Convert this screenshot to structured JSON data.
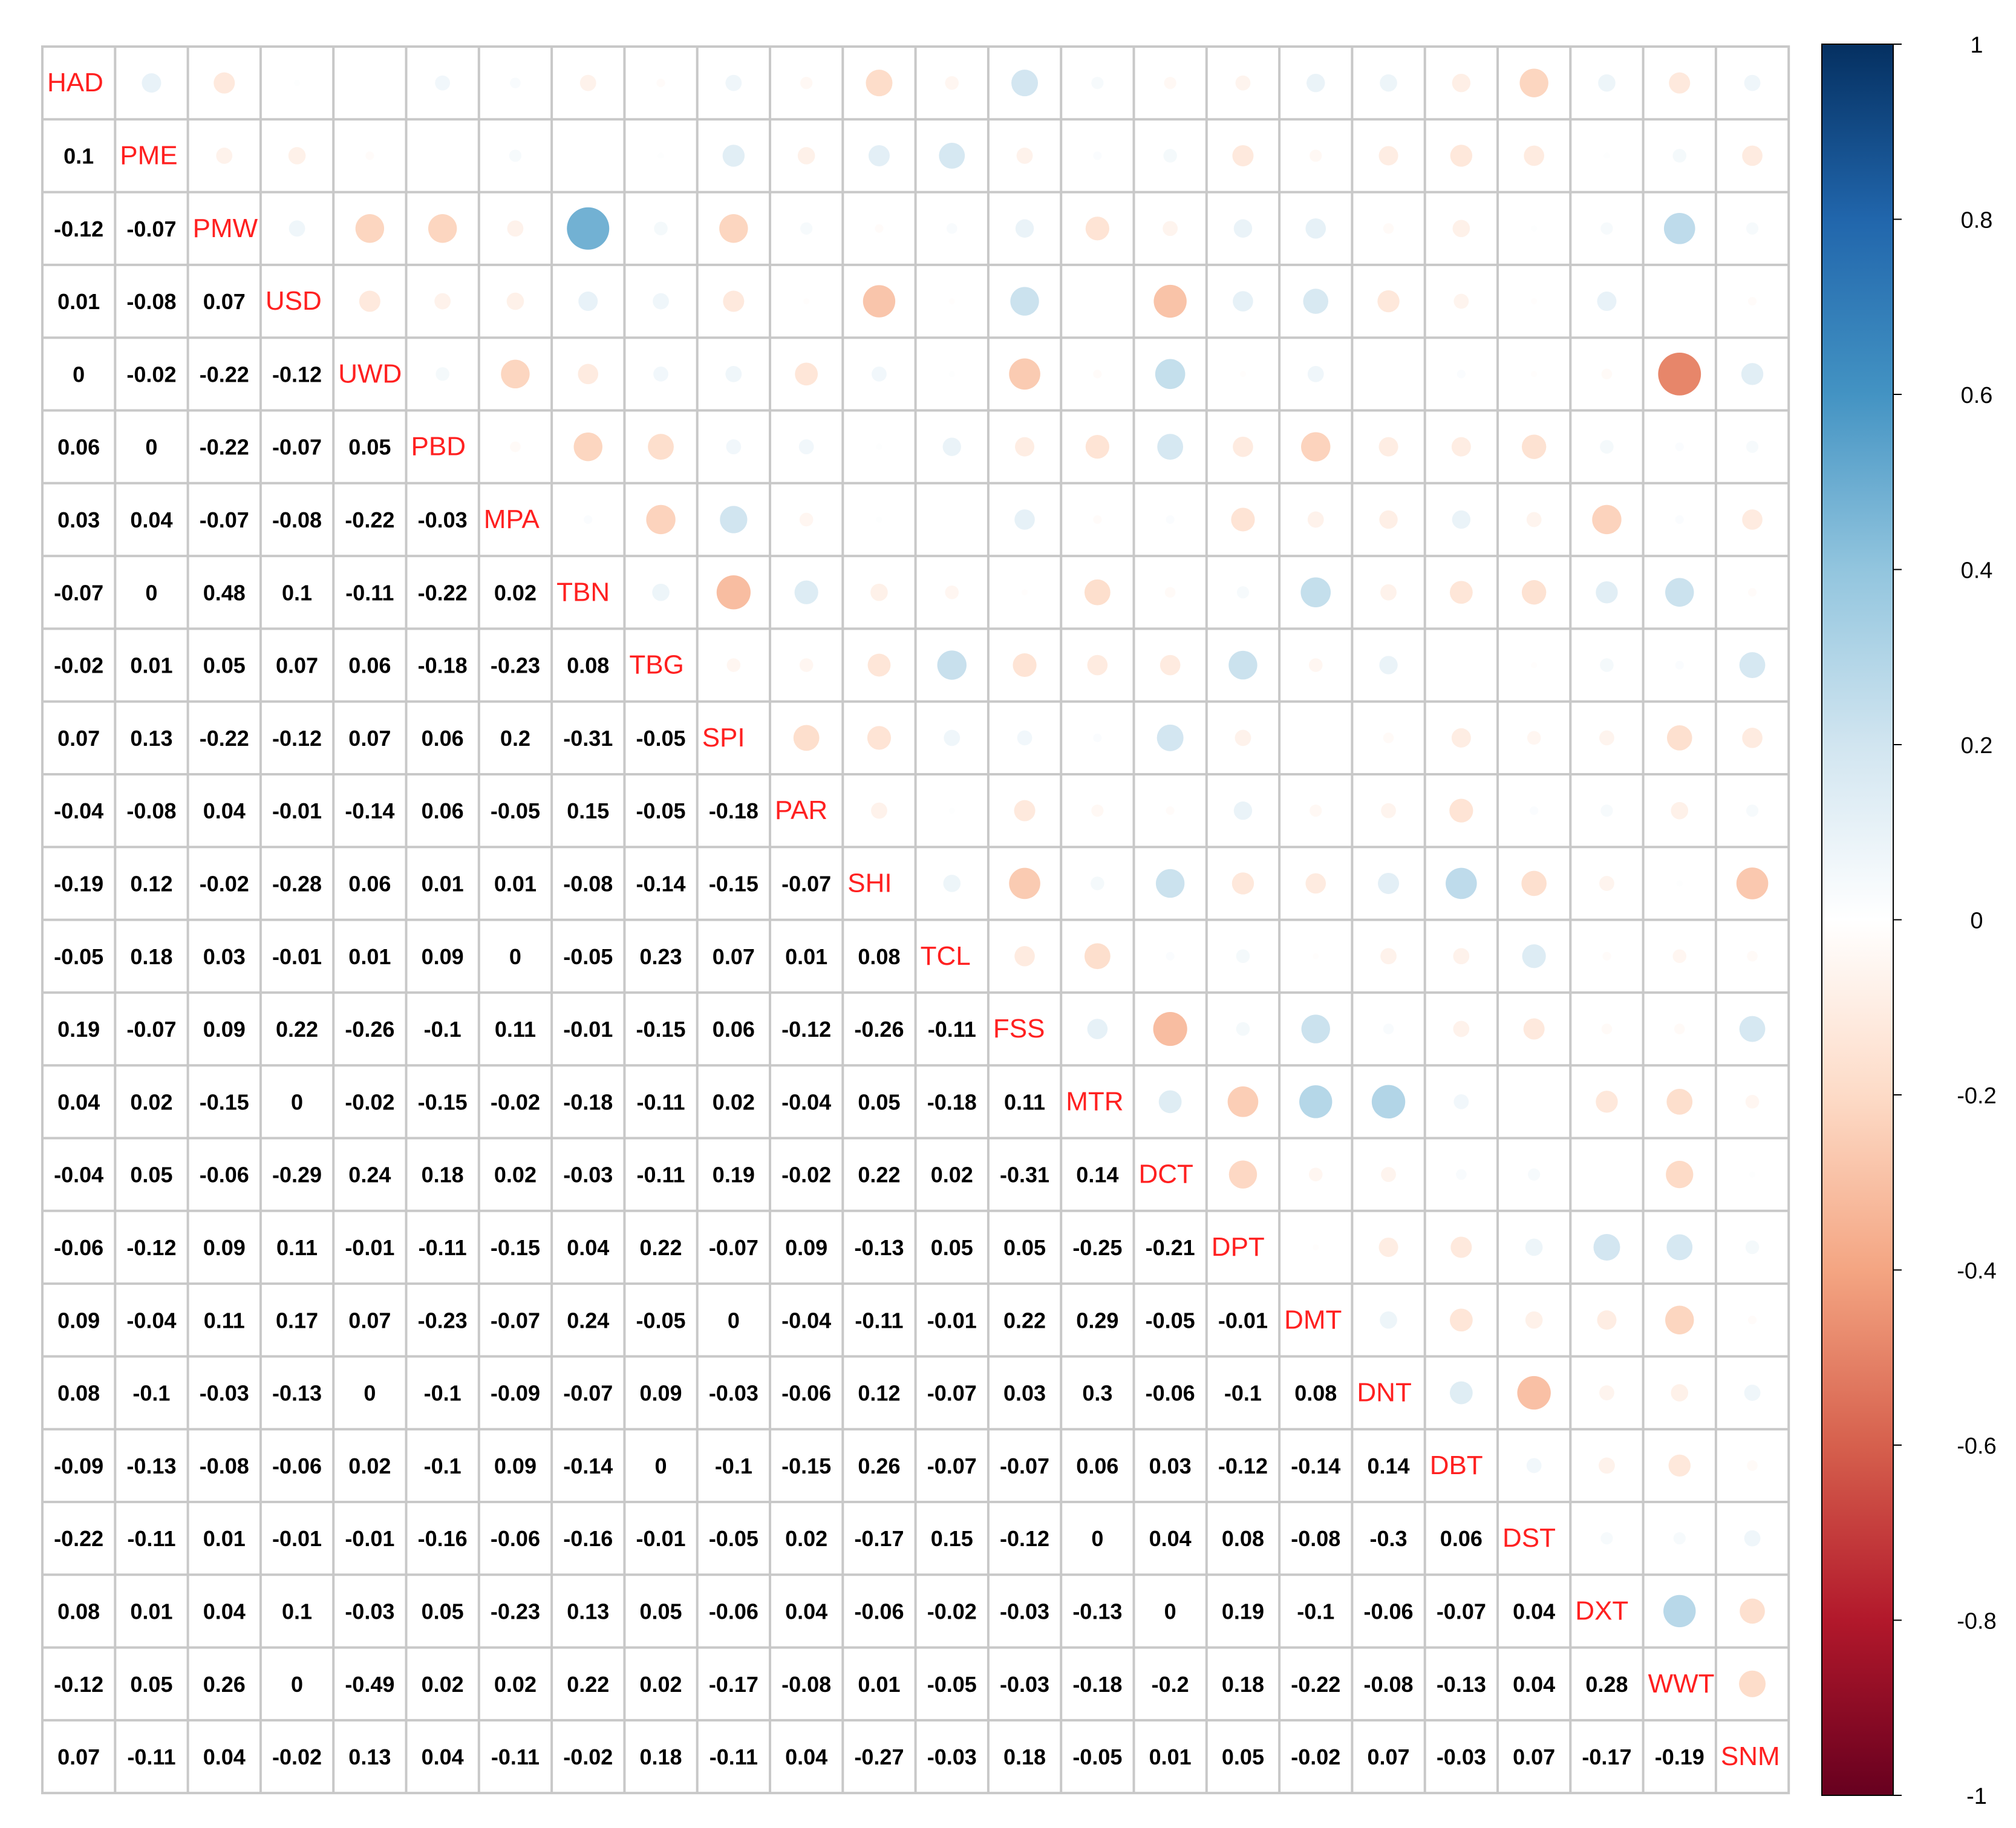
{
  "chart_data": {
    "type": "heatmap",
    "title": "",
    "variables": [
      "HAD",
      "PME",
      "PMW",
      "USD",
      "UWD",
      "PBD",
      "MPA",
      "TBN",
      "TBG",
      "SPI",
      "PAR",
      "SHI",
      "TCL",
      "FSS",
      "MTR",
      "DCT",
      "DPT",
      "DMT",
      "DNT",
      "DBT",
      "DST",
      "DXT",
      "WWT",
      "SNM"
    ],
    "lower_triangle": [
      [],
      [
        0.1
      ],
      [
        -0.12,
        -0.07
      ],
      [
        0.01,
        -0.08,
        0.07
      ],
      [
        0,
        -0.02,
        -0.22,
        -0.12
      ],
      [
        0.06,
        0,
        -0.22,
        -0.07,
        0.05
      ],
      [
        0.03,
        0.04,
        -0.07,
        -0.08,
        -0.22,
        -0.03
      ],
      [
        -0.07,
        0,
        0.48,
        0.1,
        -0.11,
        -0.22,
        0.02
      ],
      [
        -0.02,
        0.01,
        0.05,
        0.07,
        0.06,
        -0.18,
        -0.23,
        0.08
      ],
      [
        0.07,
        0.13,
        -0.22,
        -0.12,
        0.07,
        0.06,
        0.2,
        -0.31,
        -0.05
      ],
      [
        -0.04,
        -0.08,
        0.04,
        -0.01,
        -0.14,
        0.06,
        -0.05,
        0.15,
        -0.05,
        -0.18
      ],
      [
        -0.19,
        0.12,
        -0.02,
        -0.28,
        0.06,
        0.01,
        0.01,
        -0.08,
        -0.14,
        -0.15,
        -0.07
      ],
      [
        -0.05,
        0.18,
        0.03,
        -0.01,
        0.01,
        0.09,
        0,
        -0.05,
        0.23,
        0.07,
        0.01,
        0.08
      ],
      [
        0.19,
        -0.07,
        0.09,
        0.22,
        -0.26,
        -0.1,
        0.11,
        -0.01,
        -0.15,
        0.06,
        -0.12,
        -0.26,
        -0.11
      ],
      [
        0.04,
        0.02,
        -0.15,
        0,
        -0.02,
        -0.15,
        -0.02,
        -0.18,
        -0.11,
        0.02,
        -0.04,
        0.05,
        -0.18,
        0.11
      ],
      [
        -0.04,
        0.05,
        -0.06,
        -0.29,
        0.24,
        0.18,
        0.02,
        -0.03,
        -0.11,
        0.19,
        -0.02,
        0.22,
        0.02,
        -0.31,
        0.14
      ],
      [
        -0.06,
        -0.12,
        0.09,
        0.11,
        -0.01,
        -0.11,
        -0.15,
        0.04,
        0.22,
        -0.07,
        0.09,
        -0.13,
        0.05,
        0.05,
        -0.25,
        -0.21
      ],
      [
        0.09,
        -0.04,
        0.11,
        0.17,
        0.07,
        -0.23,
        -0.07,
        0.24,
        -0.05,
        0,
        -0.04,
        -0.11,
        -0.01,
        0.22,
        0.29,
        -0.05,
        -0.01
      ],
      [
        0.08,
        -0.1,
        -0.03,
        -0.13,
        0,
        -0.1,
        -0.09,
        -0.07,
        0.09,
        -0.03,
        -0.06,
        0.12,
        -0.07,
        0.03,
        0.3,
        -0.06,
        -0.1,
        0.08
      ],
      [
        -0.09,
        -0.13,
        -0.08,
        -0.06,
        0.02,
        -0.1,
        0.09,
        -0.14,
        0,
        -0.1,
        -0.15,
        0.26,
        -0.07,
        -0.07,
        0.06,
        0.03,
        -0.12,
        -0.14,
        0.14
      ],
      [
        -0.22,
        -0.11,
        0.01,
        -0.01,
        -0.01,
        -0.16,
        -0.06,
        -0.16,
        -0.01,
        -0.05,
        0.02,
        -0.17,
        0.15,
        -0.12,
        0,
        0.04,
        0.08,
        -0.08,
        -0.3,
        0.06
      ],
      [
        0.08,
        0.01,
        0.04,
        0.1,
        -0.03,
        0.05,
        -0.23,
        0.13,
        0.05,
        -0.06,
        0.04,
        -0.06,
        -0.02,
        -0.03,
        -0.13,
        0,
        0.19,
        -0.1,
        -0.06,
        -0.07,
        0.04
      ],
      [
        -0.12,
        0.05,
        0.26,
        0,
        -0.49,
        0.02,
        0.02,
        0.22,
        0.02,
        -0.17,
        -0.08,
        0.01,
        -0.05,
        -0.03,
        -0.18,
        -0.2,
        0.18,
        -0.22,
        -0.08,
        -0.13,
        0.04,
        0.28
      ],
      [
        0.07,
        -0.11,
        0.04,
        -0.02,
        0.13,
        0.04,
        -0.11,
        -0.02,
        0.18,
        -0.11,
        0.04,
        -0.27,
        -0.03,
        0.18,
        -0.05,
        0.01,
        0.05,
        -0.02,
        0.07,
        -0.03,
        0.07,
        -0.17,
        -0.19
      ]
    ],
    "upper_triangle_display": "circles",
    "lower_triangle_display": "numbers",
    "diagonal_display": "variable names",
    "colorbar": {
      "range": [
        -1,
        1
      ],
      "ticks": [
        "1",
        "0.8",
        "0.6",
        "0.4",
        "0.2",
        "0",
        "-0.2",
        "-0.4",
        "-0.6",
        "-0.8",
        "-1"
      ],
      "colors": [
        "#67001F",
        "#B2182B",
        "#D6604D",
        "#F4A582",
        "#FDDBC7",
        "#FFFFFF",
        "#D1E5F0",
        "#92C5DE",
        "#4393C3",
        "#2166AC",
        "#053061"
      ]
    },
    "grid": true,
    "label_color": "#FF2020",
    "number_color": "#000000"
  }
}
